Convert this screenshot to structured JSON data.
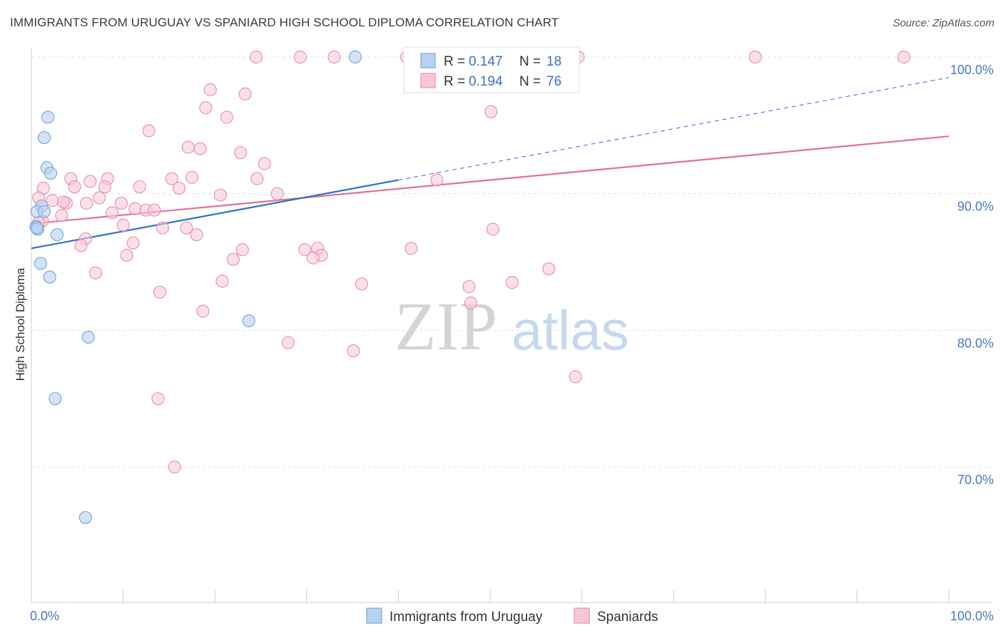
{
  "title": "IMMIGRANTS FROM URUGUAY VS SPANIARD HIGH SCHOOL DIPLOMA CORRELATION CHART",
  "source": "Source: ZipAtlas.com",
  "watermark": {
    "part1": "ZIP",
    "part2": "atlas"
  },
  "colors": {
    "uruguay_fill": "#b8d2f2",
    "uruguay_stroke": "#7aa6dc",
    "uruguay_line": "#2f6fcc",
    "spain_fill": "#f9c6d6",
    "spain_stroke": "#e893b0",
    "spain_line": "#e26f98",
    "grid": "#e3e3e3",
    "axis_text": "#4a78c2"
  },
  "legend": {
    "r_label": "R =",
    "n_label": "N =",
    "series": [
      {
        "r": "0.147",
        "n": "18"
      },
      {
        "r": "0.194",
        "n": "76"
      }
    ]
  },
  "chart_data": {
    "type": "scatter",
    "title": "IMMIGRANTS FROM URUGUAY VS SPANIARD HIGH SCHOOL DIPLOMA CORRELATION CHART",
    "xlabel": "",
    "ylabel": "High School Diploma",
    "xlim": [
      0,
      100
    ],
    "ylim": [
      60,
      101
    ],
    "x_tick_labels": [
      "0.0%",
      "100.0%"
    ],
    "y_tick_labels": [
      {
        "value": 100,
        "label": "100.0%"
      },
      {
        "value": 90,
        "label": "90.0%"
      },
      {
        "value": 80,
        "label": "80.0%"
      },
      {
        "value": 70,
        "label": "70.0%"
      }
    ],
    "grid": true,
    "legend_position": "top-center",
    "series": [
      {
        "name": "Immigrants from Uruguay",
        "r": 0.147,
        "n": 18,
        "trend": {
          "x0": 0,
          "y0": 86.0,
          "x1": 40,
          "y1": 91.0,
          "dash_to_x": 100,
          "dash_to_y": 98.5
        },
        "points": [
          [
            1.8,
            95.6
          ],
          [
            1.4,
            94.1
          ],
          [
            1.7,
            91.9
          ],
          [
            2.1,
            91.5
          ],
          [
            1.1,
            89.1
          ],
          [
            0.6,
            88.7
          ],
          [
            1.4,
            88.7
          ],
          [
            0.5,
            87.6
          ],
          [
            0.7,
            87.4
          ],
          [
            2.8,
            87.0
          ],
          [
            1.0,
            84.9
          ],
          [
            2.0,
            83.9
          ],
          [
            6.2,
            79.5
          ],
          [
            2.6,
            75.0
          ],
          [
            5.9,
            66.3
          ],
          [
            23.7,
            80.7
          ],
          [
            35.3,
            100.0
          ],
          [
            0.6,
            87.5
          ]
        ]
      },
      {
        "name": "Spaniards",
        "r": 0.194,
        "n": 76,
        "trend": {
          "x0": 0,
          "y0": 87.8,
          "x1": 100,
          "y1": 94.2
        },
        "points": [
          [
            24.5,
            100.0
          ],
          [
            29.3,
            100.0
          ],
          [
            33.0,
            100.0
          ],
          [
            40.9,
            100.0
          ],
          [
            45.0,
            100.0
          ],
          [
            59.6,
            100.0
          ],
          [
            78.9,
            100.0
          ],
          [
            95.1,
            100.0
          ],
          [
            19.5,
            97.6
          ],
          [
            23.3,
            97.3
          ],
          [
            19.0,
            96.3
          ],
          [
            21.3,
            95.6
          ],
          [
            50.1,
            96.0
          ],
          [
            12.8,
            94.6
          ],
          [
            17.1,
            93.4
          ],
          [
            18.4,
            93.3
          ],
          [
            22.8,
            93.0
          ],
          [
            25.4,
            92.2
          ],
          [
            4.3,
            91.1
          ],
          [
            8.3,
            91.1
          ],
          [
            15.3,
            91.1
          ],
          [
            17.5,
            91.2
          ],
          [
            24.6,
            91.1
          ],
          [
            6.4,
            90.9
          ],
          [
            11.8,
            90.5
          ],
          [
            4.7,
            90.5
          ],
          [
            8.0,
            90.5
          ],
          [
            1.3,
            90.4
          ],
          [
            16.1,
            90.4
          ],
          [
            20.6,
            89.9
          ],
          [
            26.8,
            90.0
          ],
          [
            44.2,
            91.0
          ],
          [
            0.8,
            89.7
          ],
          [
            7.4,
            89.7
          ],
          [
            3.8,
            89.3
          ],
          [
            2.3,
            89.5
          ],
          [
            6.0,
            89.3
          ],
          [
            9.8,
            89.3
          ],
          [
            11.3,
            88.9
          ],
          [
            12.5,
            88.8
          ],
          [
            13.4,
            88.8
          ],
          [
            3.3,
            88.4
          ],
          [
            1.2,
            88.0
          ],
          [
            8.8,
            88.6
          ],
          [
            10.0,
            87.7
          ],
          [
            14.3,
            87.5
          ],
          [
            16.9,
            87.5
          ],
          [
            18.0,
            87.0
          ],
          [
            50.3,
            87.4
          ],
          [
            5.9,
            86.7
          ],
          [
            5.4,
            86.2
          ],
          [
            11.1,
            86.4
          ],
          [
            10.4,
            85.5
          ],
          [
            23.0,
            85.9
          ],
          [
            31.2,
            86.0
          ],
          [
            41.4,
            86.0
          ],
          [
            31.6,
            85.5
          ],
          [
            30.7,
            85.3
          ],
          [
            22.0,
            85.2
          ],
          [
            7.0,
            84.2
          ],
          [
            56.4,
            84.5
          ],
          [
            20.8,
            83.6
          ],
          [
            36.0,
            83.4
          ],
          [
            47.7,
            83.2
          ],
          [
            52.4,
            83.5
          ],
          [
            14.0,
            82.8
          ],
          [
            47.9,
            82.0
          ],
          [
            18.7,
            81.4
          ],
          [
            28.0,
            79.1
          ],
          [
            35.1,
            78.5
          ],
          [
            59.3,
            76.6
          ],
          [
            13.8,
            75.0
          ],
          [
            15.6,
            70.0
          ],
          [
            3.5,
            89.4
          ],
          [
            29.8,
            85.9
          ],
          [
            0.8,
            87.9
          ]
        ]
      }
    ]
  },
  "bottom_legend": [
    "Immigrants from Uruguay",
    "Spaniards"
  ]
}
